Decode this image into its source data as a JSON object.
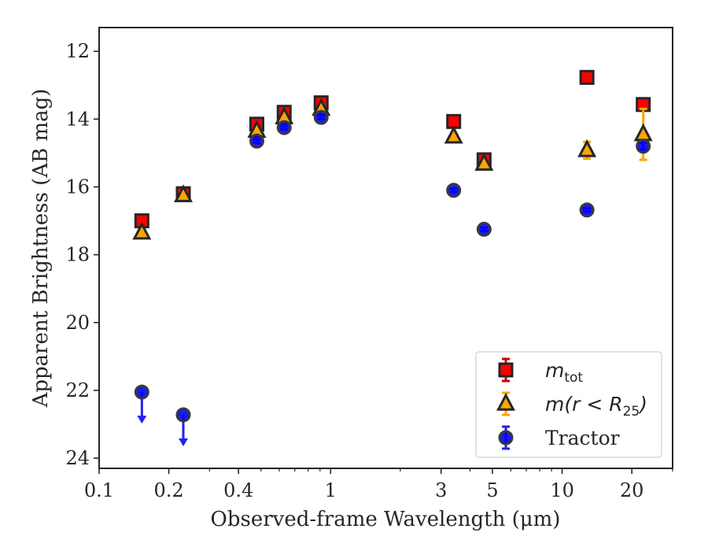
{
  "chart_data": {
    "type": "scatter",
    "title": "",
    "xlabel": "Observed-frame Wavelength (μm)",
    "ylabel": "Apparent Brightness (AB mag)",
    "xscale": "log",
    "xlim": [
      0.1,
      30
    ],
    "ylim": [
      24.3,
      11.3
    ],
    "y_inverted": true,
    "xticks": [
      {
        "value": 0.1,
        "label": "0.1"
      },
      {
        "value": 0.2,
        "label": "0.2"
      },
      {
        "value": 0.4,
        "label": "0.4"
      },
      {
        "value": 1,
        "label": "1"
      },
      {
        "value": 3,
        "label": "3"
      },
      {
        "value": 5,
        "label": "5"
      },
      {
        "value": 10,
        "label": "10"
      },
      {
        "value": 20,
        "label": "20"
      }
    ],
    "yticks": [
      {
        "value": 12,
        "label": "12"
      },
      {
        "value": 14,
        "label": "14"
      },
      {
        "value": 16,
        "label": "16"
      },
      {
        "value": 18,
        "label": "18"
      },
      {
        "value": 20,
        "label": "20"
      },
      {
        "value": 22,
        "label": "22"
      },
      {
        "value": 24,
        "label": "24"
      }
    ],
    "grid": false,
    "legend_position": "lower-right",
    "series": [
      {
        "name": "m_tot",
        "label_main": "m",
        "label_sub": "tot",
        "marker": "square",
        "color": "#ff0000",
        "errcolor": "#cc0000",
        "points": [
          {
            "x": 0.153,
            "y": 17.0,
            "err": 0.1
          },
          {
            "x": 0.231,
            "y": 16.2,
            "err": 0.1
          },
          {
            "x": 0.48,
            "y": 14.15,
            "err": 0.05
          },
          {
            "x": 0.63,
            "y": 13.8,
            "err": 0.05
          },
          {
            "x": 0.91,
            "y": 13.52,
            "err": 0.05
          },
          {
            "x": 3.4,
            "y": 14.07,
            "err": 0.05
          },
          {
            "x": 4.6,
            "y": 15.2,
            "err": 0.05
          },
          {
            "x": 12.8,
            "y": 12.77,
            "err": 0.05
          },
          {
            "x": 22.4,
            "y": 13.57,
            "err": 0.1
          }
        ]
      },
      {
        "name": "m(r < R25)",
        "label_main": "m(r < R",
        "label_sub": "25",
        "label_end": ")",
        "marker": "triangle",
        "color": "#ffa500",
        "errcolor": "#ffa500",
        "points": [
          {
            "x": 0.153,
            "y": 17.35,
            "err": 0.1
          },
          {
            "x": 0.231,
            "y": 16.25,
            "err": 0.1
          },
          {
            "x": 0.48,
            "y": 14.35,
            "err": 0.05
          },
          {
            "x": 0.63,
            "y": 13.95,
            "err": 0.05
          },
          {
            "x": 0.91,
            "y": 13.7,
            "err": 0.05
          },
          {
            "x": 3.4,
            "y": 14.52,
            "err": 0.05
          },
          {
            "x": 4.6,
            "y": 15.32,
            "err": 0.05
          },
          {
            "x": 12.8,
            "y": 14.92,
            "err": 0.25
          },
          {
            "x": 22.4,
            "y": 14.45,
            "err": 0.75
          }
        ]
      },
      {
        "name": "Tractor",
        "label_main": "Tractor",
        "marker": "circle",
        "color": "#0000ff",
        "errcolor": "#2222ee",
        "points": [
          {
            "x": 0.153,
            "y": 22.05,
            "upper_limit": true
          },
          {
            "x": 0.231,
            "y": 22.72,
            "upper_limit": true
          },
          {
            "x": 0.48,
            "y": 14.65,
            "err": 0.05
          },
          {
            "x": 0.63,
            "y": 14.25,
            "err": 0.05
          },
          {
            "x": 0.91,
            "y": 13.95,
            "err": 0.05
          },
          {
            "x": 3.4,
            "y": 16.1,
            "err": 0.05
          },
          {
            "x": 4.6,
            "y": 17.25,
            "err": 0.05
          },
          {
            "x": 12.8,
            "y": 16.68,
            "err": 0.05
          },
          {
            "x": 22.4,
            "y": 14.8,
            "err": 0.1
          }
        ]
      }
    ]
  }
}
